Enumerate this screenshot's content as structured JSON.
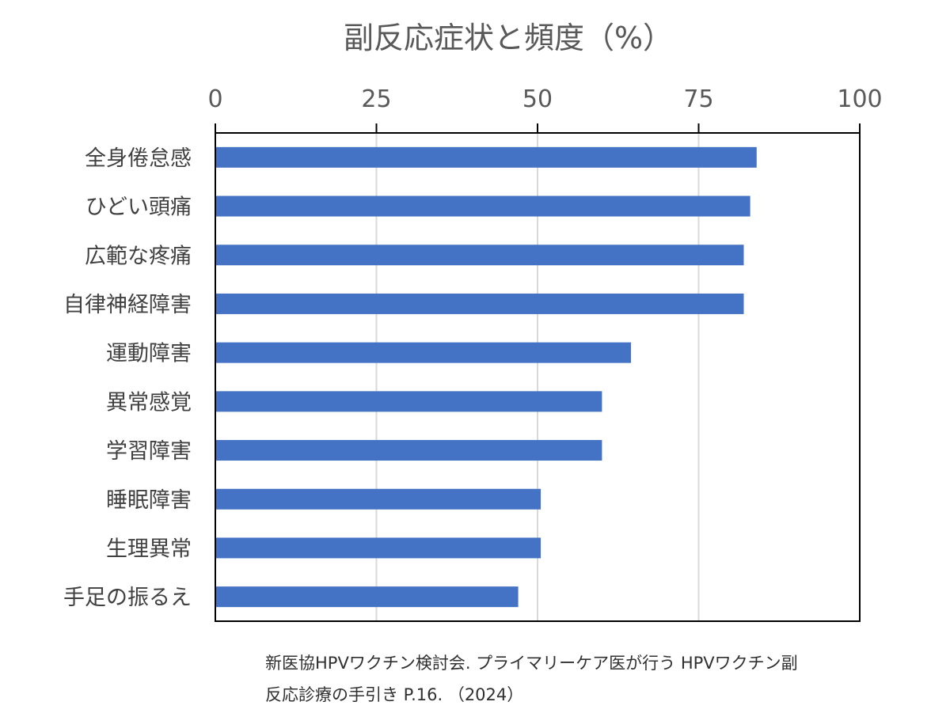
{
  "chart_data": {
    "type": "bar",
    "orientation": "horizontal",
    "title": "副反応症状と頻度（%）",
    "categories": [
      "全身倦怠感",
      "ひどい頭痛",
      "広範な疼痛",
      "自律神経障害",
      "運動障害",
      "異常感覚",
      "学習障害",
      "睡眠障害",
      "生理異常",
      "手足の振るえ"
    ],
    "series": [
      {
        "values": [
          84,
          83,
          82,
          82,
          64.5,
          60,
          60,
          50.5,
          50.5,
          47
        ]
      }
    ],
    "xlim": [
      0,
      100
    ],
    "xticks": [
      0,
      25,
      50,
      75,
      100
    ],
    "xtick_labels": [
      "0",
      "25",
      "50",
      "75",
      "100"
    ],
    "axis_position": "top",
    "grid": true,
    "bar_color": "#4472c4"
  },
  "source": {
    "line1": "新医協HPVワクチン検討会. プライマリーケア医が行う HPVワクチン副",
    "line2": "反応診療の手引き P.16. （2024）"
  }
}
